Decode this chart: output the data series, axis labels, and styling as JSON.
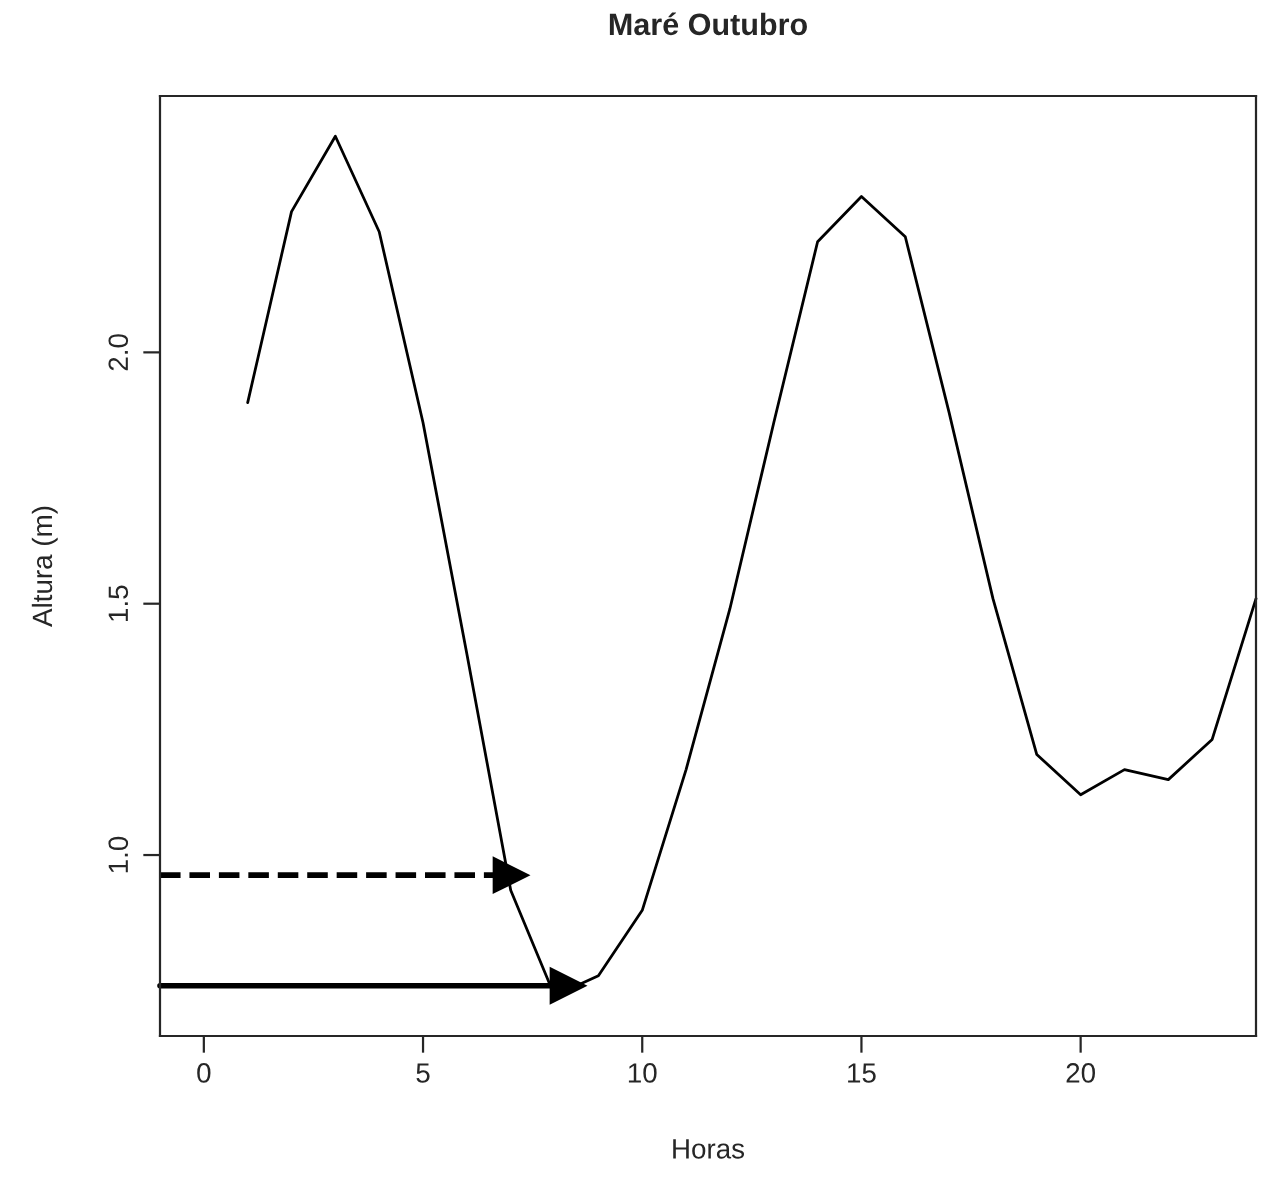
{
  "chart_data": {
    "type": "line",
    "title": "Maré Outubro",
    "xlabel": "Horas",
    "ylabel": "Altura (m)",
    "x": [
      1,
      2,
      3,
      4,
      5,
      6,
      7,
      8,
      9,
      10,
      11,
      12,
      13,
      14,
      15,
      16,
      17,
      18,
      19,
      20,
      21,
      22,
      23,
      24
    ],
    "series": [
      {
        "color": "#000000",
        "values": [
          1.9,
          2.28,
          2.43,
          2.24,
          1.86,
          1.4,
          0.93,
          0.72,
          0.76,
          0.89,
          1.17,
          1.49,
          1.86,
          2.22,
          2.31,
          2.23,
          1.88,
          1.51,
          1.2,
          1.12,
          1.17,
          1.15,
          1.23,
          1.51
        ]
      },
      {
        "type": "line",
        "marker": "triangle",
        "color": "#000000",
        "line_style": "dashed",
        "x": [
          -1,
          7
        ],
        "values": [
          0.96,
          0.96
        ]
      },
      {
        "type": "line",
        "marker": "triangle",
        "color": "#000000",
        "line_style": "solid",
        "x": [
          -1,
          8.3
        ],
        "values": [
          0.74,
          0.74
        ]
      }
    ],
    "xlim": [
      -1,
      24
    ],
    "ylim": [
      0.64,
      2.51
    ],
    "xticks": [
      0,
      5,
      10,
      15,
      20
    ],
    "yticks": [
      {
        "value": 1.0,
        "label": "1.0"
      },
      {
        "value": 1.5,
        "label": "1.5"
      },
      {
        "value": 2.0,
        "label": "2.0"
      }
    ],
    "grid": false
  }
}
